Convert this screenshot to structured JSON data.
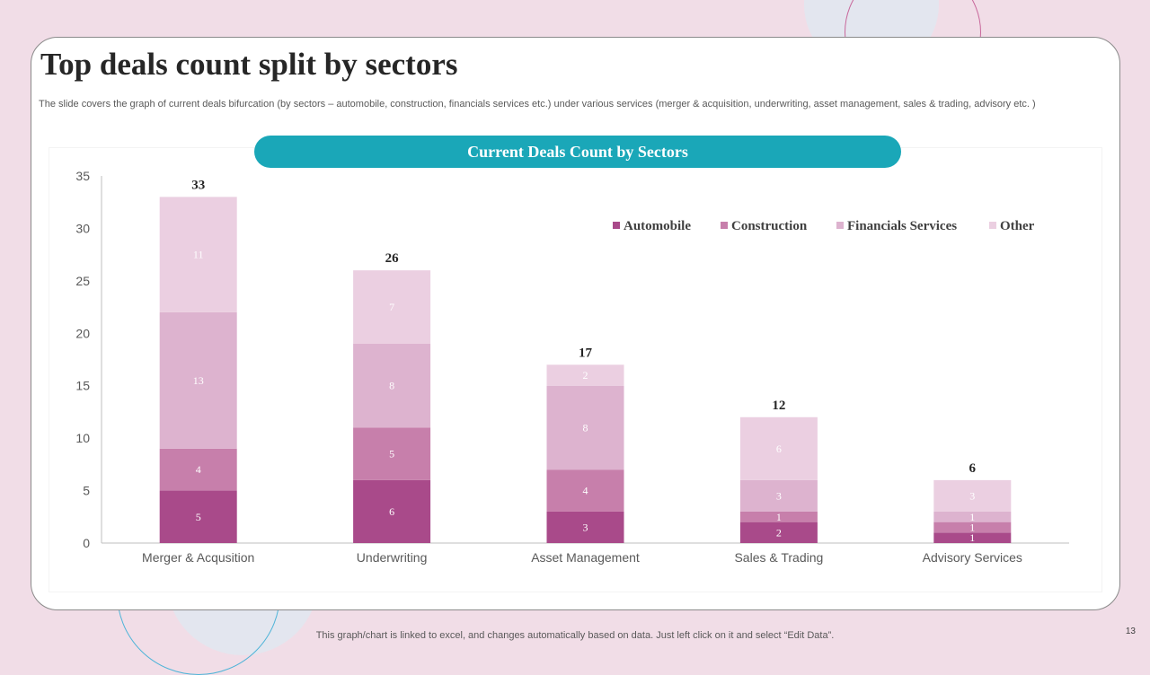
{
  "slide": {
    "title": "Top deals count split by sectors",
    "description": "The slide covers the graph of current deals bifurcation (by sectors – automobile, construction, financials services etc.) under various services (merger & acquisition, underwriting, asset management, sales & trading, advisory etc. )",
    "footnote": "This graph/chart is linked to excel,  and changes automatically based on data. Just left click on it and select “Edit Data”.",
    "page_number": "13"
  },
  "chart_data": {
    "type": "bar",
    "stacked": true,
    "title": "Current Deals Count by Sectors",
    "xlabel": "",
    "ylabel": "",
    "categories": [
      "Merger & Acqusition",
      "Underwriting",
      "Asset Management",
      "Sales & Trading",
      "Advisory Services"
    ],
    "series": [
      {
        "name": "Automobile",
        "color": "#a94a8a",
        "values": [
          5,
          6,
          3,
          2,
          1
        ]
      },
      {
        "name": "Construction",
        "color": "#c77fab",
        "values": [
          4,
          5,
          4,
          1,
          1
        ]
      },
      {
        "name": "Financials Services",
        "color": "#ddb3cf",
        "values": [
          13,
          8,
          8,
          3,
          1
        ]
      },
      {
        "name": "Other",
        "color": "#ebcfe1",
        "values": [
          11,
          7,
          2,
          6,
          3
        ]
      }
    ],
    "totals": [
      33,
      26,
      17,
      12,
      6
    ],
    "ylim": [
      0,
      35
    ],
    "yticks": [
      0,
      5,
      10,
      15,
      20,
      25,
      30,
      35
    ],
    "grid": false,
    "legend_position": "top-right"
  }
}
